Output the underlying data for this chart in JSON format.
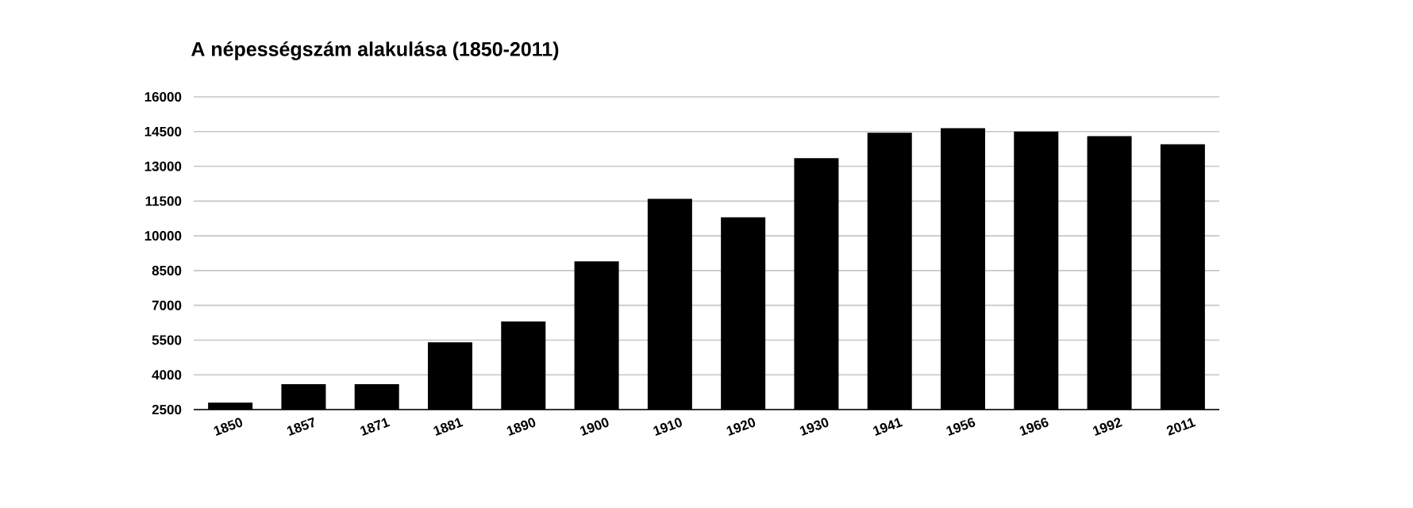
{
  "chart_data": {
    "type": "bar",
    "title": "A népességszám alakulása (1850-2011)",
    "categories": [
      "1850",
      "1857",
      "1871",
      "1881",
      "1890",
      "1900",
      "1910",
      "1920",
      "1930",
      "1941",
      "1956",
      "1966",
      "1992",
      "2011"
    ],
    "values": [
      2800,
      3600,
      3600,
      5400,
      6300,
      8900,
      11600,
      10800,
      13350,
      14450,
      14650,
      14500,
      14300,
      13950
    ],
    "color": "#000000",
    "ylim": [
      2500,
      16000
    ],
    "yticks": [
      2500,
      4000,
      5500,
      7000,
      8500,
      10000,
      11500,
      13000,
      14500,
      16000
    ],
    "grid": "y"
  }
}
